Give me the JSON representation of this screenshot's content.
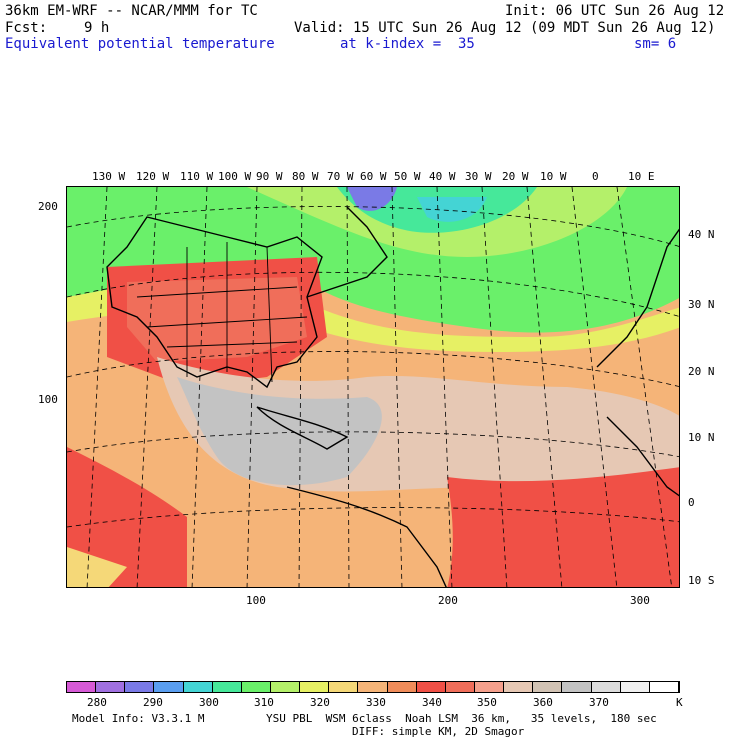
{
  "header": {
    "model": "36km EM-WRF -- NCAR/MMM for TC",
    "init": "Init: 06 UTC Sun 26 Aug 12",
    "fcst_label": "Fcst:",
    "fcst_value": "9 h",
    "valid": "Valid: 15 UTC Sun 26 Aug 12 (09 MDT Sun 26 Aug 12)",
    "field": "Equivalent potential temperature",
    "level": "at k-index =  35",
    "smooth": "sm= 6"
  },
  "longitude_labels": [
    "130 W",
    "120 W",
    "110 W",
    "100 W",
    "90 W",
    "80 W",
    "70 W",
    "60 W",
    "50 W",
    "40 W",
    "30 W",
    "20 W",
    "10 W",
    "0",
    "10 E"
  ],
  "latitude_labels": [
    "40 N",
    "30 N",
    "20 N",
    "10 N",
    "0",
    "10 S"
  ],
  "grid_y_labels": [
    "200",
    "100"
  ],
  "grid_x_labels": [
    "100",
    "200",
    "300"
  ],
  "colorbar": {
    "labels": [
      "280",
      "290",
      "300",
      "310",
      "320",
      "330",
      "340",
      "350",
      "360",
      "370",
      "K"
    ],
    "colors": [
      "#d65ad6",
      "#a070e0",
      "#7a7ae6",
      "#5a9ef0",
      "#44d4d4",
      "#46e89a",
      "#6af06a",
      "#b4f06a",
      "#e6f064",
      "#f5d878",
      "#f5b478",
      "#f08c5a",
      "#f05046",
      "#f06e5a",
      "#f5a08c",
      "#e6c8b4",
      "#d2c3b4",
      "#c3c3c3",
      "#dcdcdc",
      "#f0f0f0",
      "#ffffff"
    ]
  },
  "footer": {
    "model_info": "Model Info: V3.3.1 M",
    "physics": "YSU PBL  WSM 6class  Noah LSM  36 km,   35 levels,  180 sec",
    "diffusion": "DIFF: simple KM, 2D Smagor"
  }
}
